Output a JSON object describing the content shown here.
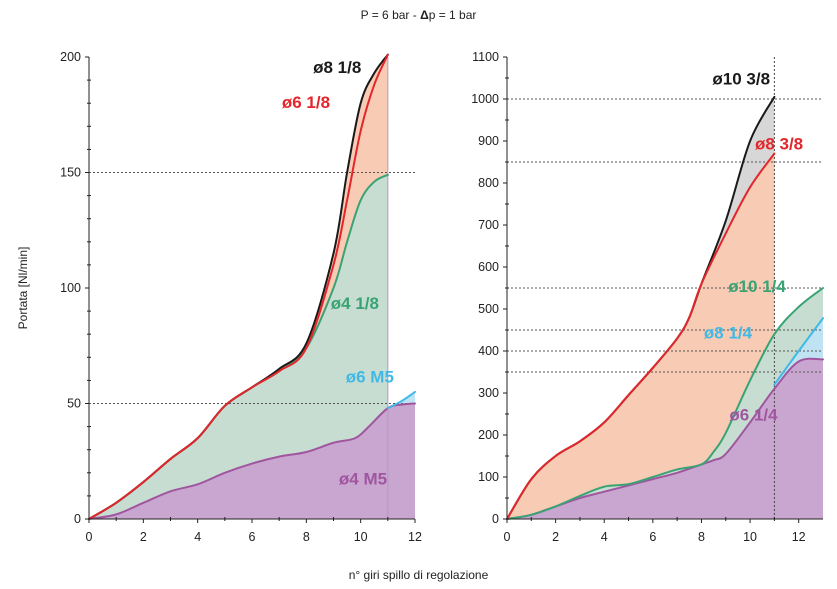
{
  "header": {
    "caption_prefix": "P = 6 bar - ",
    "caption_delta": "Δ",
    "caption_suffix": "p = 1 bar"
  },
  "xlabel": "n° giri spillo di regolazione",
  "ylabel": "Portata [Nl/min]",
  "colors": {
    "black": "#1a1a1a",
    "red": "#e3262b",
    "green": "#3aa374",
    "cyan": "#41b9e6",
    "purple": "#a0569f",
    "fill_red": "#f8cbb4",
    "fill_green": "#c7ddd1",
    "fill_purple": "#c8a6cf",
    "fill_gray": "#d7d7d7",
    "fill_cyan": "#bfe3f2"
  },
  "chart_data": [
    {
      "type": "area",
      "xlim": [
        0,
        12
      ],
      "ylim": [
        0,
        200
      ],
      "xticks": [
        "0",
        "2",
        "4",
        "6",
        "8",
        "10",
        "12"
      ],
      "yticks": [
        "0",
        "50",
        "100",
        "150",
        "200"
      ],
      "series": [
        {
          "name": "ø8 1/8",
          "color": "black",
          "fill": "fill_red",
          "points": [
            [
              0,
              0
            ],
            [
              1,
              7
            ],
            [
              2,
              16
            ],
            [
              3,
              26
            ],
            [
              4,
              35
            ],
            [
              5,
              49
            ],
            [
              6,
              57
            ],
            [
              7,
              65
            ],
            [
              8,
              76
            ],
            [
              9,
              115
            ],
            [
              9.5,
              150
            ],
            [
              10,
              180
            ],
            [
              10.5,
              193
            ],
            [
              11,
              201
            ]
          ]
        },
        {
          "name": "ø6 1/8",
          "color": "red",
          "fill": "fill_red",
          "points": [
            [
              0,
              0
            ],
            [
              1,
              7
            ],
            [
              2,
              16
            ],
            [
              3,
              26
            ],
            [
              4,
              35
            ],
            [
              5,
              49
            ],
            [
              6,
              57
            ],
            [
              7,
              64
            ],
            [
              8,
              74
            ],
            [
              9,
              110
            ],
            [
              9.5,
              138
            ],
            [
              10,
              168
            ],
            [
              10.5,
              188
            ],
            [
              11,
              201
            ]
          ]
        },
        {
          "name": "ø4 1/8",
          "color": "green",
          "fill": "fill_green",
          "points": [
            [
              0,
              0
            ],
            [
              1,
              7
            ],
            [
              2,
              16
            ],
            [
              3,
              26
            ],
            [
              4,
              35
            ],
            [
              5,
              49
            ],
            [
              6,
              57
            ],
            [
              7,
              64
            ],
            [
              8,
              74
            ],
            [
              9,
              100
            ],
            [
              9.5,
              120
            ],
            [
              10,
              138
            ],
            [
              10.5,
              146
            ],
            [
              11,
              149
            ]
          ]
        },
        {
          "name": "ø6 M5",
          "color": "cyan",
          "fill": "fill_cyan",
          "points": [
            [
              11,
              48
            ],
            [
              11.5,
              51
            ],
            [
              12,
              55
            ]
          ]
        },
        {
          "name": "ø4 M5",
          "color": "purple",
          "fill": "fill_purple",
          "points": [
            [
              0,
              0
            ],
            [
              1,
              2
            ],
            [
              2,
              7
            ],
            [
              3,
              12
            ],
            [
              4,
              15
            ],
            [
              5,
              20
            ],
            [
              6,
              24
            ],
            [
              7,
              27
            ],
            [
              8,
              29
            ],
            [
              9,
              33
            ],
            [
              9.8,
              35
            ],
            [
              10.3,
              40
            ],
            [
              11,
              48
            ],
            [
              11.5,
              49.5
            ],
            [
              12,
              50
            ]
          ]
        }
      ],
      "labels": [
        {
          "series": "ø8 1/8",
          "color": "black",
          "x": 8.25,
          "y": 193
        },
        {
          "series": "ø6 1/8",
          "color": "red",
          "x": 7.1,
          "y": 178
        },
        {
          "series": "ø4 1/8",
          "color": "green",
          "x": 8.9,
          "y": 91
        },
        {
          "series": "ø6 M5",
          "color": "cyan",
          "x": 9.45,
          "y": 59
        },
        {
          "series": "ø4 M5",
          "color": "purple",
          "x": 9.2,
          "y": 15
        }
      ],
      "reference_lines": {
        "y": [
          50,
          150
        ],
        "x": 11
      }
    },
    {
      "type": "area",
      "xlim": [
        0,
        13
      ],
      "ylim": [
        0,
        1100
      ],
      "xticks": [
        "0",
        "2",
        "4",
        "6",
        "8",
        "10",
        "12"
      ],
      "yticks": [
        "0",
        "100",
        "200",
        "300",
        "400",
        "500",
        "600",
        "700",
        "800",
        "900",
        "1000",
        "1100"
      ],
      "series": [
        {
          "name": "ø10 3/8",
          "color": "black",
          "fill": "fill_gray",
          "points": [
            [
              0,
              0
            ],
            [
              1,
              95
            ],
            [
              2,
              150
            ],
            [
              3,
              185
            ],
            [
              4,
              230
            ],
            [
              5,
              295
            ],
            [
              6,
              360
            ],
            [
              7,
              430
            ],
            [
              7.5,
              480
            ],
            [
              8,
              560
            ],
            [
              9,
              710
            ],
            [
              10,
              900
            ],
            [
              11,
              1005
            ]
          ]
        },
        {
          "name": "ø8 3/8",
          "color": "red",
          "fill": "fill_red",
          "points": [
            [
              0,
              0
            ],
            [
              1,
              95
            ],
            [
              2,
              150
            ],
            [
              3,
              185
            ],
            [
              4,
              230
            ],
            [
              5,
              295
            ],
            [
              6,
              360
            ],
            [
              7,
              430
            ],
            [
              7.5,
              480
            ],
            [
              8,
              560
            ],
            [
              9,
              680
            ],
            [
              10,
              790
            ],
            [
              11,
              870
            ]
          ]
        },
        {
          "name": "ø10 1/4",
          "color": "green",
          "fill": "fill_green",
          "points": [
            [
              0,
              0
            ],
            [
              1,
              10
            ],
            [
              2,
              30
            ],
            [
              3,
              55
            ],
            [
              4,
              77
            ],
            [
              5,
              83
            ],
            [
              6,
              100
            ],
            [
              7,
              118
            ],
            [
              8,
              130
            ],
            [
              8.5,
              160
            ],
            [
              9,
              205
            ],
            [
              10,
              330
            ],
            [
              11,
              440
            ],
            [
              12,
              505
            ],
            [
              13,
              550
            ]
          ]
        },
        {
          "name": "ø8 1/4",
          "color": "cyan",
          "fill": "fill_cyan",
          "points": [
            [
              11,
              320
            ],
            [
              12,
              400
            ],
            [
              13,
              478
            ]
          ]
        },
        {
          "name": "ø6 1/4",
          "color": "purple",
          "fill": "fill_purple",
          "points": [
            [
              0,
              0
            ],
            [
              1,
              10
            ],
            [
              2,
              30
            ],
            [
              3,
              50
            ],
            [
              4,
              65
            ],
            [
              5,
              80
            ],
            [
              6,
              95
            ],
            [
              7,
              110
            ],
            [
              8,
              130
            ],
            [
              8.5,
              140
            ],
            [
              9,
              155
            ],
            [
              10,
              230
            ],
            [
              11,
              310
            ],
            [
              12,
              375
            ],
            [
              13,
              380
            ]
          ]
        }
      ],
      "labels": [
        {
          "series": "ø10 3/8",
          "color": "black",
          "x": 8.45,
          "y": 1034
        },
        {
          "series": "ø8 3/8",
          "color": "red",
          "x": 10.2,
          "y": 880
        },
        {
          "series": "ø10 1/4",
          "color": "green",
          "x": 9.1,
          "y": 540
        },
        {
          "series": "ø8 1/4",
          "color": "cyan",
          "x": 8.1,
          "y": 430
        },
        {
          "series": "ø6 1/4",
          "color": "purple",
          "x": 9.15,
          "y": 235
        }
      ],
      "reference_lines": {
        "y": [
          1000,
          850,
          550,
          450,
          400,
          350
        ],
        "x": 11
      }
    }
  ]
}
